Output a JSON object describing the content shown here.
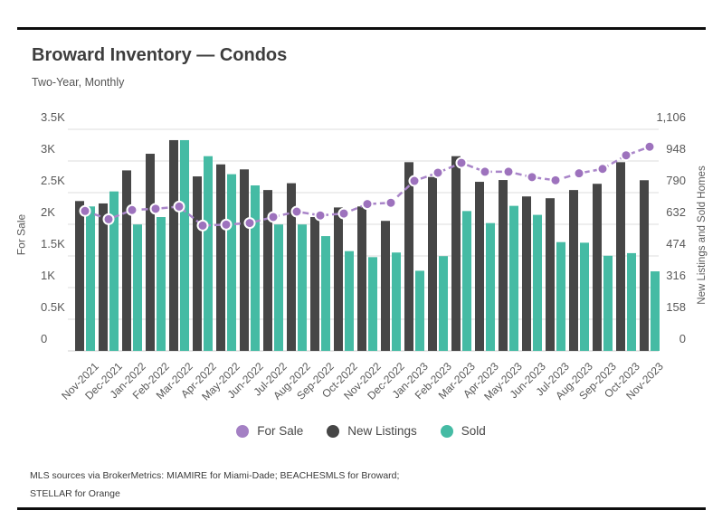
{
  "page": {
    "title": "Broward Inventory — Condos",
    "subtitle": "Two-Year, Monthly",
    "footer_line1": "MLS sources via BrokerMetrics: MIAMIRE for Miami-Dade; BEACHESMLS for Broward;",
    "footer_line2": "STELLAR for Orange"
  },
  "legend": {
    "items": [
      {
        "label": "For Sale",
        "color": "#a480c4"
      },
      {
        "label": "New Listings",
        "color": "#464646"
      },
      {
        "label": "Sold",
        "color": "#45bba4"
      }
    ]
  },
  "chart_data": {
    "type": "combo-bar-line",
    "title": "Broward Inventory — Condos",
    "subtitle": "Two-Year, Monthly",
    "categories": [
      "Nov-2021",
      "Dec-2021",
      "Jan-2022",
      "Feb-2022",
      "Mar-2022",
      "Apr-2022",
      "May-2022",
      "Jun-2022",
      "Jul-2022",
      "Aug-2022",
      "Sep-2022",
      "Oct-2022",
      "Nov-2022",
      "Dec-2022",
      "Jan-2023",
      "Feb-2023",
      "Mar-2023",
      "Apr-2023",
      "May-2023",
      "Jun-2023",
      "Jul-2023",
      "Aug-2023",
      "Sep-2023",
      "Oct-2023",
      "Nov-2023"
    ],
    "series": [
      {
        "name": "For Sale",
        "type": "line",
        "axis": "left",
        "color": "#9d72bd",
        "line_color": "#a985c9",
        "values": [
          2210,
          2080,
          2225,
          2245,
          2280,
          1980,
          1995,
          2020,
          2115,
          2200,
          2140,
          2170,
          2320,
          2340,
          2685,
          2815,
          2970,
          2830,
          2830,
          2745,
          2695,
          2805,
          2875,
          3090,
          3225
        ]
      },
      {
        "name": "New Listings",
        "type": "bar",
        "axis": "right",
        "color": "#464646",
        "values": [
          748,
          736,
          901,
          984,
          1052,
          871,
          931,
          906,
          803,
          837,
          668,
          716,
          721,
          649,
          942,
          868,
          972,
          844,
          853,
          771,
          762,
          803,
          834,
          942,
          852
        ]
      },
      {
        "name": "Sold",
        "type": "bar",
        "axis": "right",
        "color": "#45bba4",
        "values": [
          721,
          796,
          631,
          668,
          1052,
          972,
          882,
          826,
          631,
          631,
          573,
          498,
          468,
          491,
          400,
          473,
          698,
          638,
          724,
          679,
          543,
          540,
          475,
          488,
          397
        ]
      }
    ],
    "left_axis": {
      "title": "For Sale",
      "min": 0,
      "max": 3500,
      "ticks": [
        "0",
        "0.5K",
        "1K",
        "1.5K",
        "2K",
        "2.5K",
        "3K",
        "3.5K"
      ]
    },
    "right_axis": {
      "title": "New Listings and Sold Homes",
      "min": 0,
      "max": 1106,
      "ticks": [
        "0",
        "158",
        "316",
        "474",
        "632",
        "790",
        "948",
        "1,106"
      ]
    },
    "grid": true,
    "legend_position": "bottom"
  }
}
